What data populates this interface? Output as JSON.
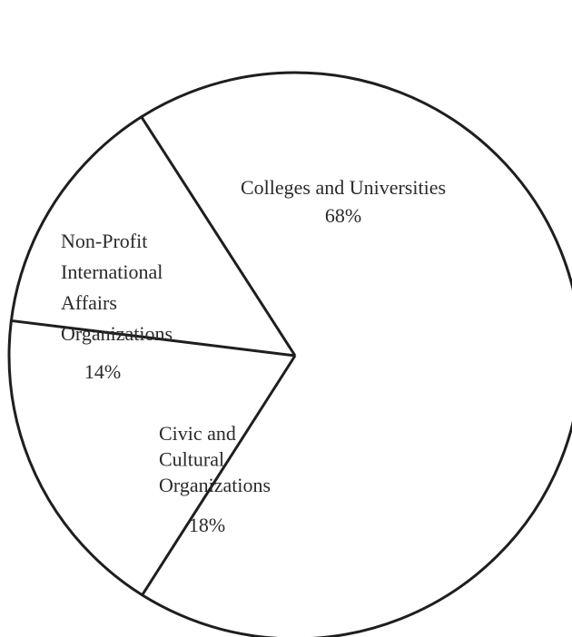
{
  "chart_data": {
    "type": "pie",
    "title": "",
    "slices": [
      {
        "label": "Colleges and Universities",
        "value": 68,
        "value_label": "68%"
      },
      {
        "label": "Civic and Cultural Organizations",
        "value": 18,
        "value_label": "18%"
      },
      {
        "label": "Non-Profit International Affairs Organizations",
        "value": 14,
        "value_label": "14%"
      }
    ],
    "legend": "none",
    "colors": {
      "fill": "#ffffff",
      "edge": "#1e1e1e",
      "text": "#2a2a2a"
    }
  }
}
